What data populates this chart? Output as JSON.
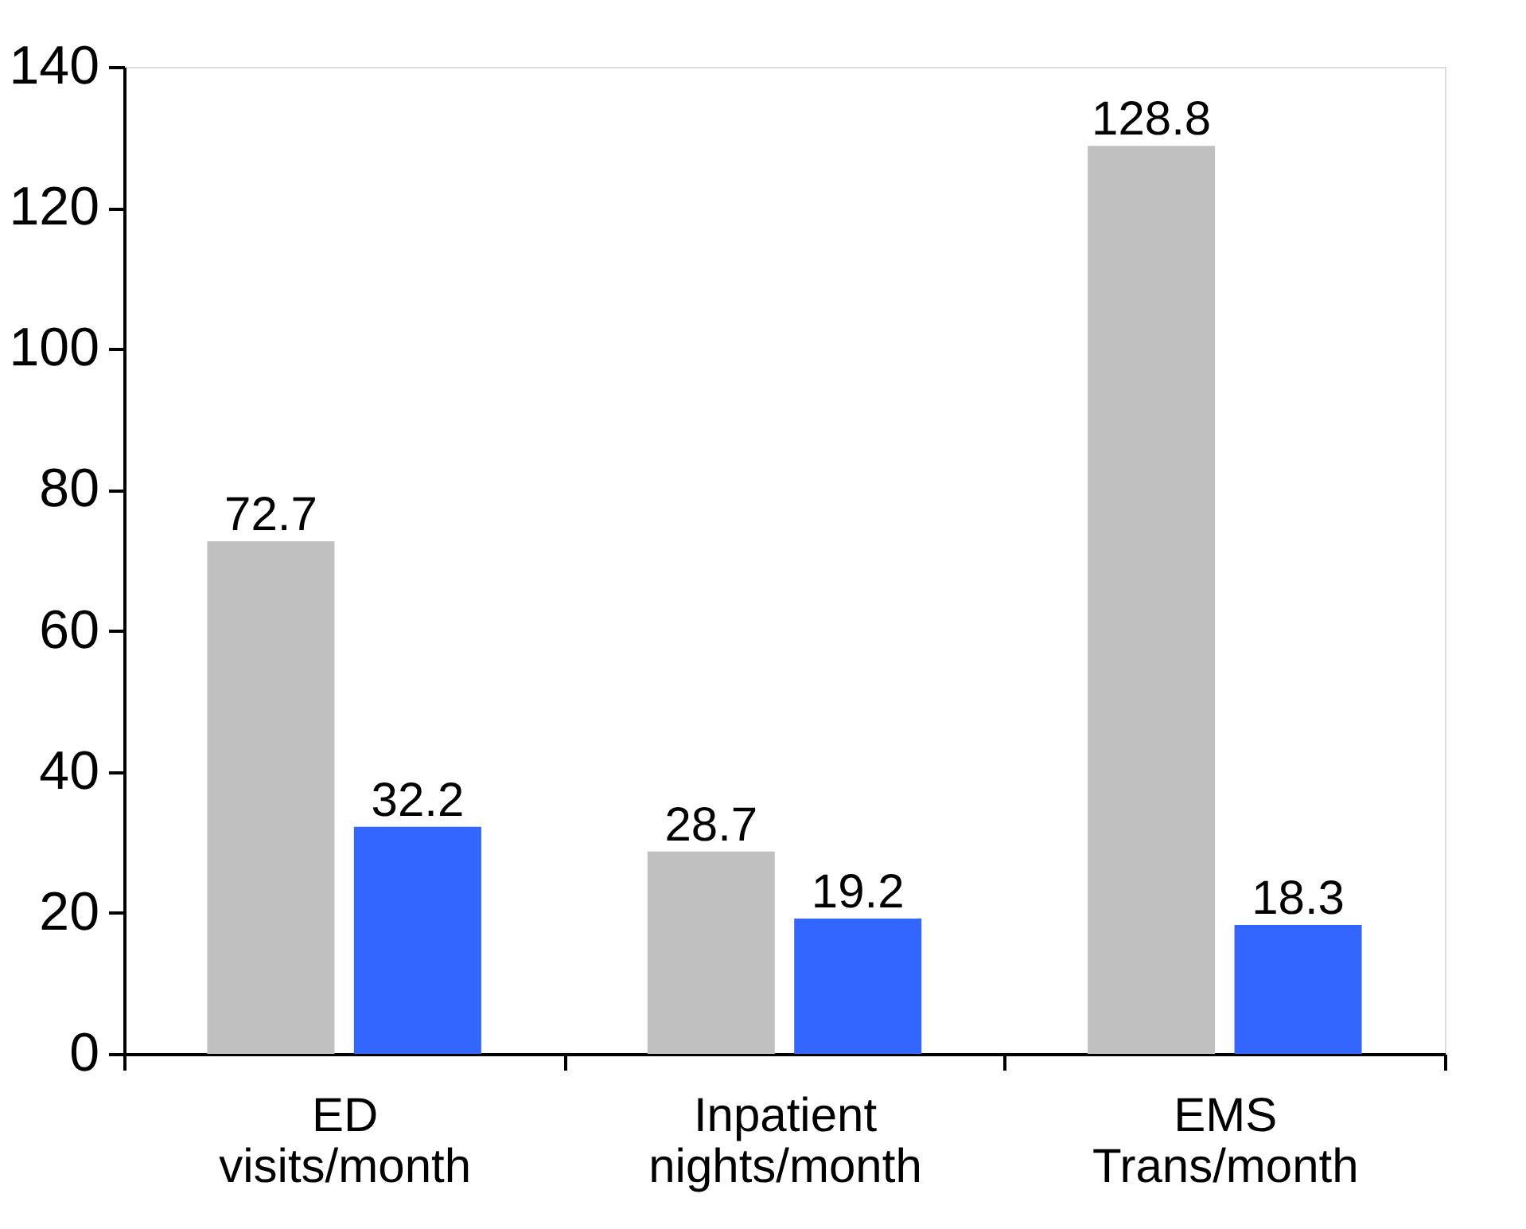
{
  "chart_data": {
    "type": "bar",
    "categories": [
      "ED\nvisits/month",
      "Inpatient\nnights/month",
      "EMS\nTrans/month"
    ],
    "series": [
      {
        "color": "#c0c0c0",
        "values": [
          72.7,
          28.7,
          128.8
        ]
      },
      {
        "color": "#3366ff",
        "values": [
          32.2,
          19.2,
          18.3
        ]
      }
    ],
    "ylim": [
      0,
      140
    ],
    "yticks": [
      0,
      20,
      40,
      60,
      80,
      100,
      120,
      140
    ],
    "grid": false,
    "legend": false,
    "data_labels": true
  }
}
